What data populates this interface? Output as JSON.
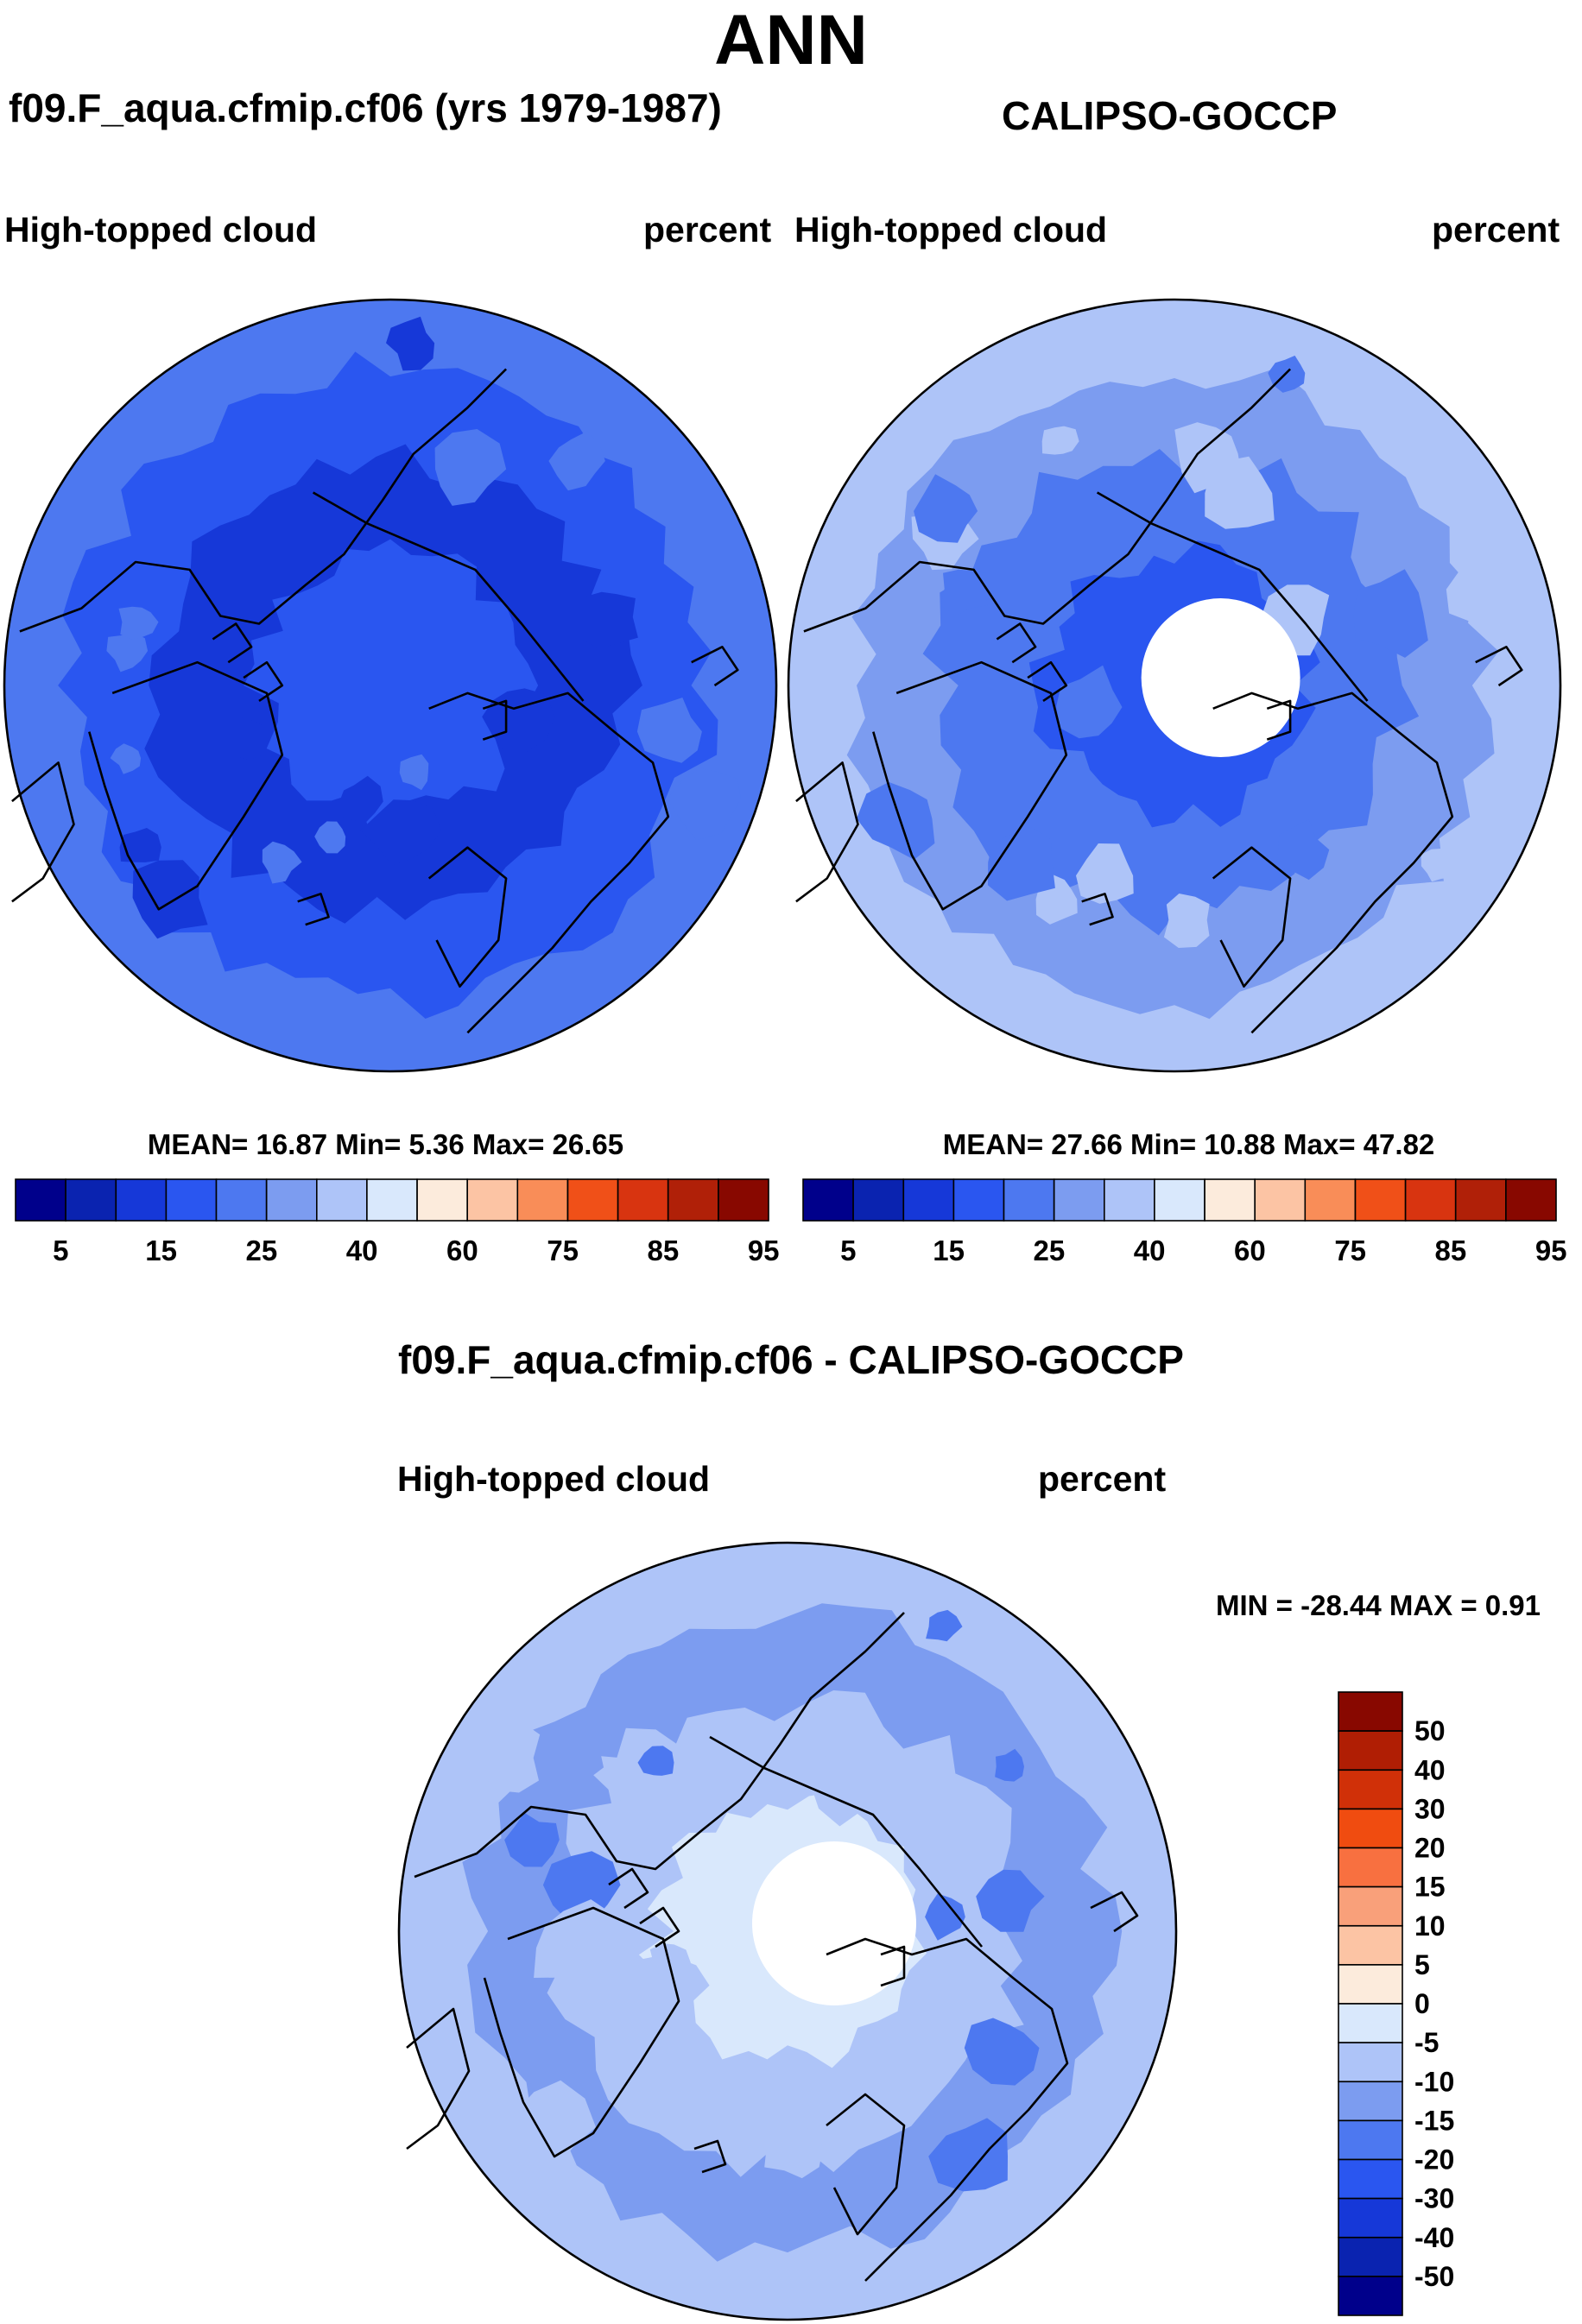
{
  "main_title": "ANN",
  "model_title": "f09.F_aqua.cfmip.cf06 (yrs 1979-1987)",
  "obs_title": "CALIPSO-GOCCP",
  "diff_title": "f09.F_aqua.cfmip.cf06 - CALIPSO-GOCCP",
  "colors": {
    "abs_palette": [
      "#00008b",
      "#0a23b0",
      "#1638d8",
      "#2a56f0",
      "#4d78f0",
      "#7c9cf0",
      "#aec4f8",
      "#d9e8fc",
      "#fcebdc",
      "#fcc4a4",
      "#f98d58",
      "#f05018",
      "#d83410",
      "#b02008",
      "#880800"
    ],
    "diff_palette": [
      "#00008b",
      "#0a23b0",
      "#1638d8",
      "#2a56f0",
      "#4d78f0",
      "#7c9cf0",
      "#aec4f8",
      "#d9e8fc",
      "#fcebdc",
      "#fcc4a4",
      "#f9a07a",
      "#f87040",
      "#f04c10",
      "#d03008",
      "#b01e04",
      "#880800"
    ],
    "coastline": "#000000"
  },
  "chart_data": [
    {
      "type": "heatmap",
      "projection": "north-polar-stereographic",
      "title": "f09.F_aqua.cfmip.cf06 (yrs 1979-1987)",
      "variable": "High-topped cloud",
      "units": "percent",
      "stats": {
        "mean": 16.87,
        "min": 5.36,
        "max": 26.65
      },
      "stats_text": "MEAN=  16.87  Min=   5.36  Max=  26.65",
      "colorbar": {
        "orientation": "horizontal",
        "tick_labels": [
          "5",
          "15",
          "25",
          "40",
          "60",
          "75",
          "85",
          "95"
        ]
      },
      "field_levels": {
        "center": 3,
        "mid": 2,
        "outer": 3,
        "edge": 4
      }
    },
    {
      "type": "heatmap",
      "projection": "north-polar-stereographic",
      "title": "CALIPSO-GOCCP",
      "variable": "High-topped cloud",
      "units": "percent",
      "stats": {
        "mean": 27.66,
        "min": 10.88,
        "max": 47.82
      },
      "stats_text": "MEAN=  27.66  Min=  10.88  Max=  47.82",
      "colorbar": {
        "orientation": "horizontal",
        "tick_labels": [
          "5",
          "15",
          "25",
          "40",
          "60",
          "75",
          "85",
          "95"
        ]
      },
      "missing_polar_cap": true,
      "field_levels": {
        "center": 3,
        "mid": 4,
        "outer": 5,
        "edge": 6
      }
    },
    {
      "type": "heatmap",
      "projection": "north-polar-stereographic",
      "title": "f09.F_aqua.cfmip.cf06 - CALIPSO-GOCCP",
      "variable": "High-topped cloud",
      "units": "percent",
      "stats": {
        "min": -28.44,
        "max": 0.91
      },
      "stats_text": "MIN = -28.44 MAX =   0.91",
      "colorbar": {
        "orientation": "vertical",
        "tick_labels": [
          "50",
          "40",
          "30",
          "20",
          "15",
          "10",
          "5",
          "0",
          "-5",
          "-10",
          "-15",
          "-20",
          "-30",
          "-40",
          "-50"
        ]
      },
      "missing_polar_cap": true,
      "field_levels": {
        "center": 7,
        "mid": 6,
        "outer": 5,
        "edge": 6
      }
    }
  ]
}
